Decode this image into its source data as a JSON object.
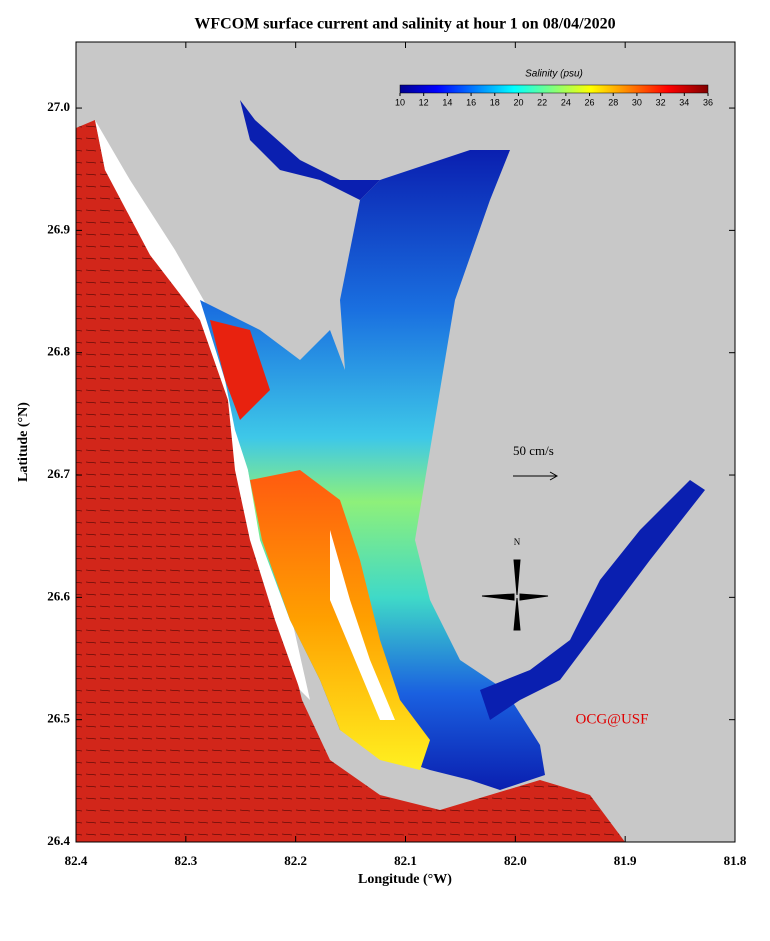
{
  "title": "WFCOM surface current and salinity at hour 1 on 08/04/2020",
  "map": {
    "x_label": "Longitude (°W)",
    "y_label": "Latitude (°N)",
    "xlim": [
      82.4,
      81.8
    ],
    "ylim": [
      26.4,
      27.054
    ],
    "xticks": [
      82.4,
      82.3,
      82.2,
      82.1,
      {
        "value": 82,
        "label": "82.0"
      },
      81.9,
      81.8
    ],
    "yticks": [
      26.4,
      26.5,
      26.6,
      26.7,
      26.8,
      26.9,
      {
        "value": 27,
        "label": "27.0"
      }
    ]
  },
  "colorbar": {
    "title": "Salinity (psu)",
    "range": [
      10,
      36
    ],
    "ticks": [
      10,
      12,
      14,
      16,
      18,
      20,
      22,
      24,
      26,
      28,
      30,
      32,
      34,
      36
    ]
  },
  "annotations": {
    "scale_arrow": "50 cm/s",
    "north": "N",
    "credit": "OCG@USF"
  }
}
